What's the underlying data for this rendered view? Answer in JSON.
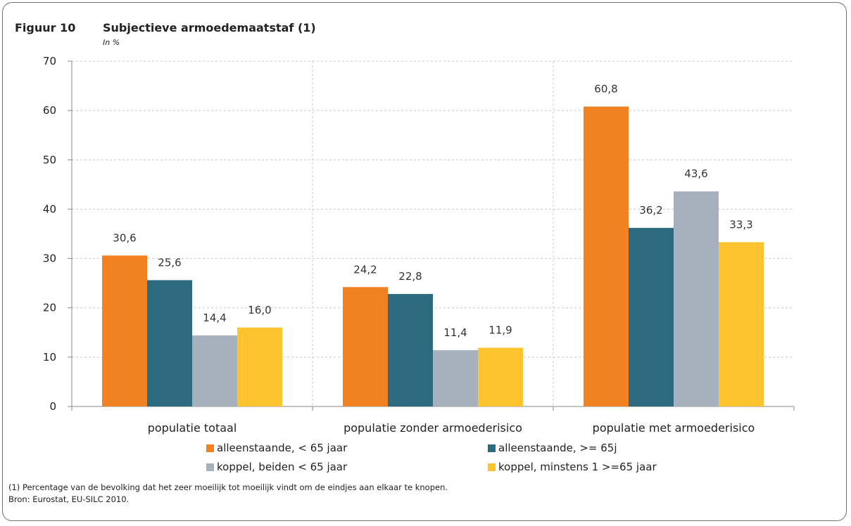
{
  "figure": {
    "number": "Figuur 10",
    "title": "Subjectieve armoedemaatstaf (1)",
    "unit": "In %"
  },
  "chart_data": {
    "type": "bar",
    "categories": [
      "populatie totaal",
      "populatie zonder armoederisico",
      "populatie met armoederisico"
    ],
    "series": [
      {
        "name": "alleenstaande, < 65 jaar",
        "color": "#f28121",
        "values": [
          30.6,
          24.2,
          60.8
        ],
        "labels": [
          "30,6",
          "24,2",
          "60,8"
        ]
      },
      {
        "name": "alleenstaande, >= 65j",
        "color": "#2c6a7f",
        "values": [
          25.6,
          22.8,
          36.2
        ],
        "labels": [
          "25,6",
          "22,8",
          "36,2"
        ]
      },
      {
        "name": "koppel, beiden < 65 jaar",
        "color": "#a7b0bd",
        "values": [
          14.4,
          11.4,
          43.6
        ],
        "labels": [
          "14,4",
          "11,4",
          "43,6"
        ]
      },
      {
        "name": "koppel, minstens 1 >=65 jaar",
        "color": "#fec42f",
        "values": [
          16.0,
          11.9,
          33.3
        ],
        "labels": [
          "16,0",
          "11,9",
          "33,3"
        ]
      }
    ],
    "ylim": [
      0,
      70
    ],
    "yticks": [
      "0",
      "10",
      "20",
      "30",
      "40",
      "50",
      "60",
      "70"
    ],
    "grid": true,
    "legend_position": "bottom"
  },
  "notes": {
    "footnote": "(1) Percentage van de bevolking dat het zeer moeilijk tot moeilijk vindt om de eindjes aan elkaar te knopen.",
    "source": "Bron: Eurostat, EU-SILC 2010."
  }
}
